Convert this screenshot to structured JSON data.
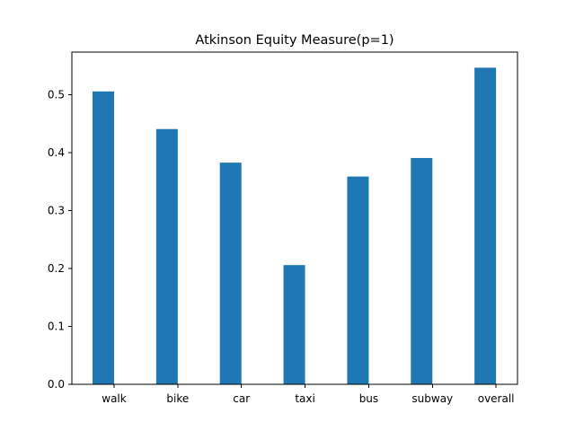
{
  "chart_data": {
    "type": "bar",
    "title": "Atkinson Equity Measure(p=1)",
    "xlabel": "",
    "ylabel": "",
    "categories": [
      "walk",
      "bike",
      "car",
      "taxi",
      "bus",
      "subway",
      "overall"
    ],
    "series": [
      {
        "values": [
          0.506,
          0.441,
          0.383,
          0.206,
          0.359,
          0.391,
          0.547
        ]
      }
    ],
    "ylim": [
      0,
      0.574
    ],
    "yticks": [
      0.0,
      0.1,
      0.2,
      0.3,
      0.4,
      0.5
    ],
    "ytick_labels": [
      "0.0",
      "0.1",
      "0.2",
      "0.3",
      "0.4",
      "0.5"
    ],
    "grid": false,
    "legend": "none",
    "bar_color": "#1f77b4"
  }
}
